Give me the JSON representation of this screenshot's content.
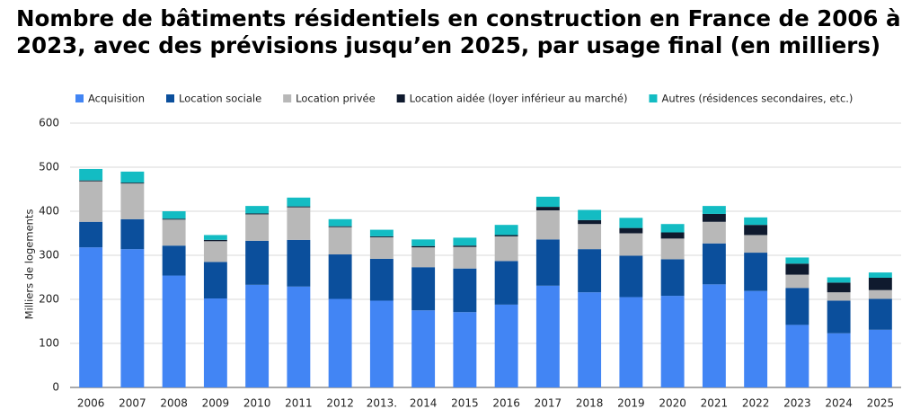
{
  "chart_data": {
    "type": "stacked-bar",
    "title": "Nombre de bâtiments résidentiels en construction en France de 2006 à 2023, avec des prévisions jusqu’en 2025, par usage final (en milliers)",
    "y_label": "Milliers de logements",
    "categories": [
      "2006",
      "2007",
      "2008",
      "2009",
      "2010",
      "2011",
      "2012",
      "2013.",
      "2014",
      "2015",
      "2016",
      "2017",
      "2018",
      "2019",
      "2020",
      "2021",
      "2022",
      "2023",
      "2024",
      "2025"
    ],
    "series": [
      {
        "name": "Acquisition",
        "color": "#4285f4",
        "values": [
          318,
          314,
          254,
          202,
          233,
          229,
          201,
          197,
          175,
          171,
          188,
          231,
          216,
          205,
          208,
          234,
          219,
          142,
          123,
          131
        ]
      },
      {
        "name": "Location sociale",
        "color": "#0b4f9c",
        "values": [
          58,
          68,
          68,
          83,
          100,
          106,
          101,
          95,
          98,
          99,
          99,
          105,
          98,
          94,
          83,
          93,
          87,
          84,
          74,
          70
        ]
      },
      {
        "name": "Location privée",
        "color": "#b8b8b8",
        "values": [
          92,
          81,
          59,
          47,
          60,
          74,
          62,
          49,
          45,
          49,
          56,
          66,
          57,
          51,
          47,
          49,
          40,
          30,
          19,
          20
        ]
      },
      {
        "name": "Location aidée (loyer inférieur au marché)",
        "color": "#0f1a2e",
        "values": [
          2,
          2,
          2,
          3,
          2,
          2,
          2,
          2,
          3,
          3,
          3,
          8,
          9,
          12,
          14,
          18,
          23,
          25,
          22,
          28
        ]
      },
      {
        "name": "Autres (résidences secondaires, etc.)",
        "color": "#13bcc3",
        "values": [
          26,
          25,
          17,
          11,
          17,
          20,
          16,
          15,
          15,
          18,
          23,
          23,
          23,
          23,
          19,
          18,
          17,
          14,
          12,
          12
        ]
      }
    ],
    "ylim": [
      0,
      600
    ],
    "yticks": [
      0,
      100,
      200,
      300,
      400,
      500,
      600
    ],
    "grid": true,
    "legend": "top"
  }
}
